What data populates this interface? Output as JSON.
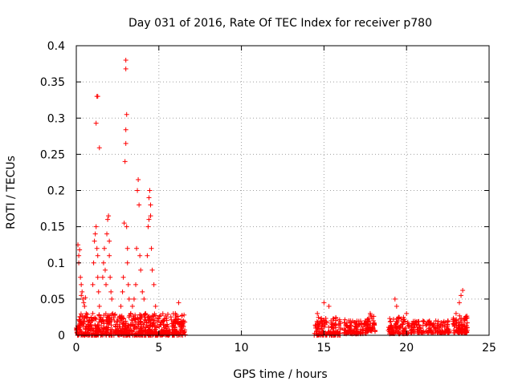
{
  "chart_data": {
    "type": "scatter",
    "title": "Day 031 of 2016, Rate Of TEC Index for receiver p780",
    "xlabel": "GPS time / hours",
    "ylabel": "ROTI / TECUs",
    "xlim": [
      0,
      25
    ],
    "ylim": [
      0,
      0.4
    ],
    "xticks": [
      0,
      5,
      10,
      15,
      20,
      25
    ],
    "xtick_labels": [
      "0",
      "5",
      "10",
      "15",
      "20",
      "25"
    ],
    "yticks": [
      0,
      0.05,
      0.1,
      0.15,
      0.2,
      0.25,
      0.3,
      0.35,
      0.4
    ],
    "ytick_labels": [
      "0",
      "0.05",
      "0.1",
      "0.15",
      "0.2",
      "0.25",
      "0.3",
      "0.35",
      "0.4"
    ],
    "grid": true,
    "marker": "+",
    "series": [
      {
        "name": "ROTI",
        "color": "#ff0000",
        "points": [
          [
            0.0,
            0.01
          ],
          [
            0.05,
            0.008
          ],
          [
            0.1,
            0.013
          ],
          [
            0.1,
            0.125
          ],
          [
            0.15,
            0.11
          ],
          [
            0.15,
            0.1
          ],
          [
            0.2,
            0.118
          ],
          [
            0.2,
            0.02
          ],
          [
            0.25,
            0.08
          ],
          [
            0.3,
            0.07
          ],
          [
            0.3,
            0.055
          ],
          [
            0.35,
            0.06
          ],
          [
            0.4,
            0.05
          ],
          [
            0.45,
            0.045
          ],
          [
            0.5,
            0.04
          ],
          [
            0.55,
            0.052
          ],
          [
            0.6,
            0.03
          ],
          [
            0.65,
            0.025
          ],
          [
            0.7,
            0.015
          ],
          [
            0.8,
            0.02
          ],
          [
            0.9,
            0.025
          ],
          [
            1.0,
            0.03
          ],
          [
            1.0,
            0.07
          ],
          [
            1.05,
            0.1
          ],
          [
            1.1,
            0.13
          ],
          [
            1.15,
            0.14
          ],
          [
            1.2,
            0.15
          ],
          [
            1.25,
            0.33
          ],
          [
            1.3,
            0.33
          ],
          [
            1.2,
            0.293
          ],
          [
            1.25,
            0.12
          ],
          [
            1.3,
            0.11
          ],
          [
            1.3,
            0.08
          ],
          [
            1.35,
            0.06
          ],
          [
            1.4,
            0.259
          ],
          [
            1.4,
            0.04
          ],
          [
            1.5,
            0.02
          ],
          [
            1.6,
            0.08
          ],
          [
            1.65,
            0.1
          ],
          [
            1.7,
            0.12
          ],
          [
            1.75,
            0.09
          ],
          [
            1.8,
            0.07
          ],
          [
            1.85,
            0.14
          ],
          [
            1.9,
            0.16
          ],
          [
            1.95,
            0.165
          ],
          [
            2.0,
            0.13
          ],
          [
            2.0,
            0.11
          ],
          [
            2.05,
            0.08
          ],
          [
            2.1,
            0.06
          ],
          [
            2.15,
            0.05
          ],
          [
            2.2,
            0.03
          ],
          [
            2.3,
            0.02
          ],
          [
            2.4,
            0.015
          ],
          [
            2.5,
            0.02
          ],
          [
            2.6,
            0.025
          ],
          [
            2.7,
            0.04
          ],
          [
            2.8,
            0.06
          ],
          [
            2.85,
            0.08
          ],
          [
            2.9,
            0.155
          ],
          [
            2.95,
            0.24
          ],
          [
            3.0,
            0.265
          ],
          [
            3.0,
            0.284
          ],
          [
            3.05,
            0.305
          ],
          [
            3.0,
            0.368
          ],
          [
            3.0,
            0.38
          ],
          [
            3.05,
            0.15
          ],
          [
            3.1,
            0.12
          ],
          [
            3.1,
            0.1
          ],
          [
            3.15,
            0.07
          ],
          [
            3.2,
            0.05
          ],
          [
            3.3,
            0.03
          ],
          [
            3.4,
            0.04
          ],
          [
            3.5,
            0.05
          ],
          [
            3.6,
            0.07
          ],
          [
            3.65,
            0.12
          ],
          [
            3.7,
            0.2
          ],
          [
            3.75,
            0.215
          ],
          [
            3.8,
            0.18
          ],
          [
            3.85,
            0.11
          ],
          [
            3.9,
            0.09
          ],
          [
            4.0,
            0.06
          ],
          [
            4.1,
            0.05
          ],
          [
            4.2,
            0.03
          ],
          [
            4.3,
            0.11
          ],
          [
            4.35,
            0.15
          ],
          [
            4.4,
            0.16
          ],
          [
            4.4,
            0.19
          ],
          [
            4.45,
            0.2
          ],
          [
            4.5,
            0.165
          ],
          [
            4.5,
            0.18
          ],
          [
            4.55,
            0.12
          ],
          [
            4.6,
            0.09
          ],
          [
            4.7,
            0.07
          ],
          [
            4.8,
            0.04
          ],
          [
            5.0,
            0.02
          ],
          [
            5.5,
            0.015
          ],
          [
            6.0,
            0.03
          ],
          [
            6.2,
            0.045
          ],
          [
            6.5,
            0.02
          ],
          [
            14.5,
            0.01
          ],
          [
            14.6,
            0.03
          ],
          [
            14.8,
            0.02
          ],
          [
            15.0,
            0.045
          ],
          [
            15.3,
            0.04
          ],
          [
            15.5,
            0.015
          ],
          [
            16.0,
            0.01
          ],
          [
            16.5,
            0.02
          ],
          [
            17.0,
            0.015
          ],
          [
            17.5,
            0.02
          ],
          [
            17.8,
            0.03
          ],
          [
            18.0,
            0.02
          ],
          [
            19.0,
            0.01
          ],
          [
            19.3,
            0.05
          ],
          [
            19.4,
            0.04
          ],
          [
            19.5,
            0.02
          ],
          [
            20.0,
            0.03
          ],
          [
            20.5,
            0.015
          ],
          [
            21.0,
            0.02
          ],
          [
            21.5,
            0.015
          ],
          [
            22.0,
            0.01
          ],
          [
            22.5,
            0.02
          ],
          [
            23.0,
            0.03
          ],
          [
            23.2,
            0.045
          ],
          [
            23.3,
            0.055
          ],
          [
            23.4,
            0.062
          ],
          [
            23.5,
            0.02
          ]
        ],
        "clusters": [
          {
            "x_range": [
              0.0,
              6.6
            ],
            "y_range": [
              0.0,
              0.03
            ],
            "n": 700
          },
          {
            "x_range": [
              14.4,
              16.0
            ],
            "y_range": [
              0.0,
              0.025
            ],
            "n": 130
          },
          {
            "x_range": [
              16.2,
              17.6
            ],
            "y_range": [
              0.002,
              0.022
            ],
            "n": 110
          },
          {
            "x_range": [
              17.6,
              18.1
            ],
            "y_range": [
              0.005,
              0.028
            ],
            "n": 45
          },
          {
            "x_range": [
              18.9,
              20.1
            ],
            "y_range": [
              0.002,
              0.025
            ],
            "n": 90
          },
          {
            "x_range": [
              20.1,
              22.6
            ],
            "y_range": [
              0.003,
              0.02
            ],
            "n": 150
          },
          {
            "x_range": [
              22.8,
              23.7
            ],
            "y_range": [
              0.003,
              0.028
            ],
            "n": 90
          }
        ]
      }
    ]
  }
}
